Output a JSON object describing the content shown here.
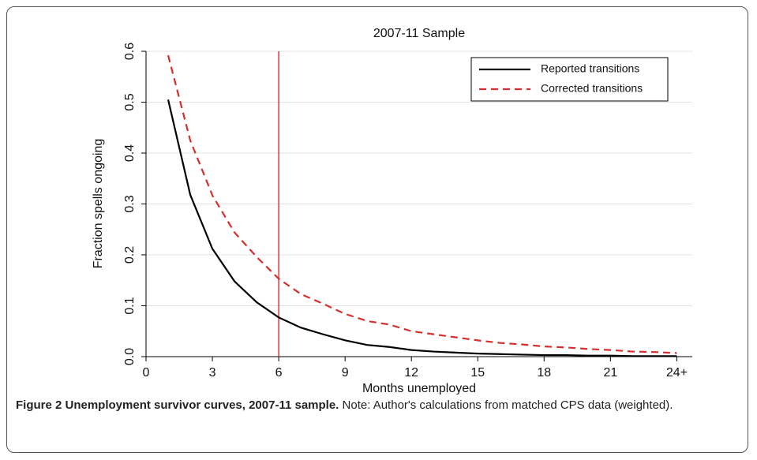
{
  "chart_data": {
    "type": "line",
    "title": "2007-11 Sample",
    "x_label": "Months unemployed",
    "y_label": "Fraction spells ongoing",
    "x": [
      1,
      2,
      3,
      4,
      5,
      6,
      7,
      8,
      9,
      10,
      11,
      12,
      13,
      14,
      15,
      16,
      17,
      18,
      19,
      20,
      21,
      22,
      23,
      24
    ],
    "series": [
      {
        "name": "Reported transitions",
        "color": "#000000",
        "dash": false,
        "values": [
          0.505,
          0.318,
          0.212,
          0.148,
          0.107,
          0.077,
          0.057,
          0.044,
          0.032,
          0.023,
          0.019,
          0.013,
          0.01,
          0.008,
          0.006,
          0.005,
          0.004,
          0.003,
          0.003,
          0.002,
          0.002,
          0.001,
          0.001,
          0.001
        ]
      },
      {
        "name": "Corrected transitions",
        "color": "#d62e2e",
        "dash": true,
        "values": [
          0.592,
          0.425,
          0.317,
          0.244,
          0.196,
          0.153,
          0.123,
          0.104,
          0.084,
          0.07,
          0.063,
          0.05,
          0.044,
          0.038,
          0.032,
          0.027,
          0.024,
          0.02,
          0.018,
          0.015,
          0.013,
          0.01,
          0.009,
          0.007
        ]
      }
    ],
    "xlim": [
      0,
      24.7
    ],
    "ylim": [
      0,
      0.6
    ],
    "xticks": [
      0,
      3,
      6,
      9,
      12,
      15,
      18,
      21,
      {
        "value": 24,
        "label": "24+"
      }
    ],
    "yticks": [
      {
        "value": 0,
        "label": "0.0"
      },
      0.1,
      0.2,
      0.3,
      0.4,
      0.5,
      0.6
    ],
    "grid": true,
    "vline": 6,
    "vline_color": "#d4202a",
    "legend": "upper right"
  },
  "caption": {
    "label": "Figure 2 Unemployment survivor curves, 2007-11 sample.",
    "text": "Note: Author's calculations from matched CPS data (weighted)."
  }
}
